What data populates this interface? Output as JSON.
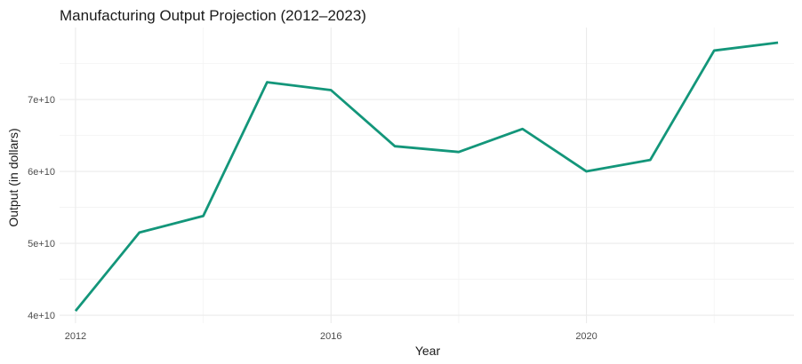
{
  "chart_data": {
    "type": "line",
    "title": "Manufacturing Output Projection (2012–2023)",
    "xlabel": "Year",
    "ylabel": "Output (in dollars)",
    "x": [
      2012,
      2013,
      2014,
      2015,
      2016,
      2017,
      2018,
      2019,
      2020,
      2021,
      2022,
      2023
    ],
    "series": [
      {
        "values": [
          40600000000,
          51500000000,
          53800000000,
          72400000000,
          71300000000,
          63500000000,
          62700000000,
          65900000000,
          60000000000,
          61600000000,
          76800000000,
          77900000000
        ],
        "color": "#13967a"
      }
    ],
    "xlim": [
      2011.75,
      2023.25
    ],
    "ylim": [
      38900000000,
      80000000000
    ],
    "x_ticks": [
      2012,
      2016,
      2020
    ],
    "x_tick_labels": [
      "2012",
      "2016",
      "2020"
    ],
    "y_ticks": [
      40000000000,
      50000000000,
      60000000000,
      70000000000
    ],
    "y_tick_labels": [
      "4e+10",
      "5e+10",
      "6e+10",
      "7e+10"
    ],
    "grid": true,
    "legend": "none"
  }
}
